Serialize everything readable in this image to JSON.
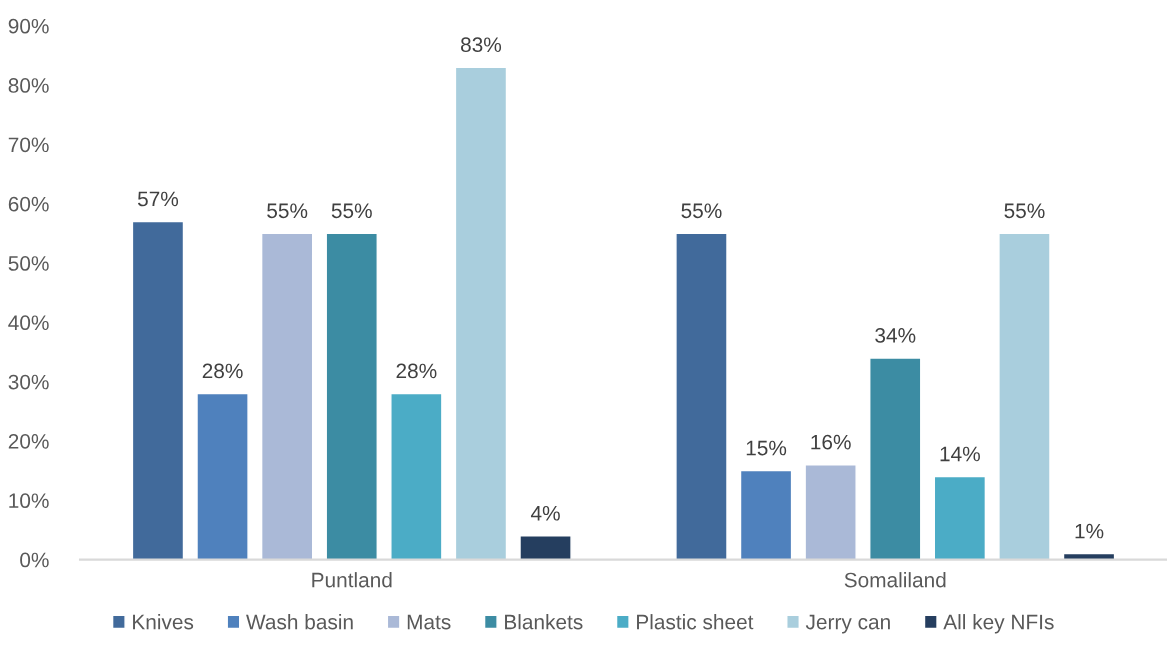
{
  "chart_data": {
    "type": "bar",
    "categories": [
      "Puntland",
      "Somaliland"
    ],
    "series": [
      {
        "name": "Knives",
        "color": "#416a9b",
        "values": [
          57,
          55
        ],
        "value_labels": [
          "57%",
          "55%"
        ]
      },
      {
        "name": "Wash basin",
        "color": "#4f81bd",
        "values": [
          28,
          15
        ],
        "value_labels": [
          "28%",
          "15%"
        ]
      },
      {
        "name": "Mats",
        "color": "#aab9d7",
        "values": [
          55,
          16
        ],
        "value_labels": [
          "55%",
          "16%"
        ]
      },
      {
        "name": "Blankets",
        "color": "#3c8ca3",
        "values": [
          55,
          34
        ],
        "value_labels": [
          "55%",
          "34%"
        ]
      },
      {
        "name": "Plastic sheet",
        "color": "#4bacc6",
        "values": [
          28,
          14
        ],
        "value_labels": [
          "28%",
          "14%"
        ]
      },
      {
        "name": "Jerry can",
        "color": "#a9cedd",
        "values": [
          83,
          55
        ],
        "value_labels": [
          "83%",
          "55%"
        ]
      },
      {
        "name": "All key NFIs",
        "color": "#253e5f",
        "values": [
          4,
          1
        ],
        "value_labels": [
          "4%",
          "1%"
        ]
      }
    ],
    "ylim": [
      0,
      90
    ],
    "yticks": [
      {
        "value": 0,
        "label": "0%"
      },
      {
        "value": 10,
        "label": "10%"
      },
      {
        "value": 20,
        "label": "20%"
      },
      {
        "value": 30,
        "label": "30%"
      },
      {
        "value": 40,
        "label": "40%"
      },
      {
        "value": 50,
        "label": "50%"
      },
      {
        "value": 60,
        "label": "60%"
      },
      {
        "value": 70,
        "label": "70%"
      },
      {
        "value": 80,
        "label": "80%"
      },
      {
        "value": 90,
        "label": "90%"
      }
    ],
    "legend": "bottom",
    "grid": false
  }
}
